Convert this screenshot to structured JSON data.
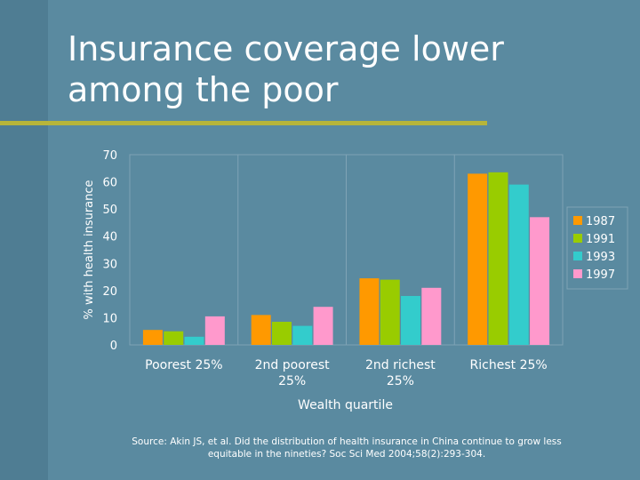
{
  "slide": {
    "title_line1": "Insurance coverage lower",
    "title_line2": "among the poor",
    "source_line1": "Source: Akin JS, et al. Did the distribution of health insurance in China continue to grow less",
    "source_line2": "equitable in the nineties? Soc Sci Med 2004;58(2):293-304."
  },
  "chart_data": {
    "type": "bar",
    "title": "",
    "xlabel": "Wealth quartile",
    "ylabel": "% with health insurance",
    "ylim": [
      0,
      70
    ],
    "yticks": [
      0,
      10,
      20,
      30,
      40,
      50,
      60,
      70
    ],
    "grid": false,
    "legend_position": "right",
    "categories": [
      [
        "Poorest 25%"
      ],
      [
        "2nd poorest",
        "25%"
      ],
      [
        "2nd richest",
        "25%"
      ],
      [
        "Richest 25%"
      ]
    ],
    "series": [
      {
        "name": "1987",
        "color": "#ff9900",
        "values": [
          5.5,
          11,
          24.5,
          63
        ]
      },
      {
        "name": "1991",
        "color": "#99cc00",
        "values": [
          5,
          8.5,
          24,
          63.5
        ]
      },
      {
        "name": "1993",
        "color": "#33cccc",
        "values": [
          3,
          7,
          18,
          59
        ]
      },
      {
        "name": "1997",
        "color": "#ff99cc",
        "values": [
          10.5,
          14,
          21,
          47
        ]
      }
    ]
  }
}
